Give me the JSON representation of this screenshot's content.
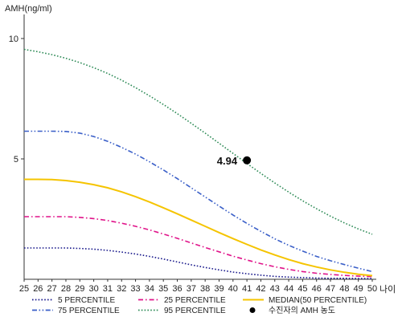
{
  "chart_data": {
    "type": "line",
    "ylabel": "AMH(ng/ml)",
    "xlabel": "나이",
    "x": [
      25,
      26,
      27,
      28,
      29,
      30,
      31,
      32,
      33,
      34,
      35,
      36,
      37,
      38,
      39,
      40,
      41,
      42,
      43,
      44,
      45,
      46,
      47,
      48,
      49,
      50
    ],
    "xlim": [
      25,
      50
    ],
    "ylim": [
      0,
      11
    ],
    "yticks": [
      5,
      10
    ],
    "series": [
      {
        "name": "5 PERCENTILE",
        "color": "#1a1a8c",
        "dash": "dotted",
        "values": [
          1.3,
          1.3,
          1.3,
          1.3,
          1.28,
          1.25,
          1.2,
          1.13,
          1.05,
          0.95,
          0.84,
          0.72,
          0.6,
          0.49,
          0.39,
          0.3,
          0.23,
          0.17,
          0.12,
          0.09,
          0.07,
          0.05,
          0.04,
          0.04,
          0.03,
          0.03
        ]
      },
      {
        "name": "25 PERCENTILE",
        "color": "#e0148a",
        "dash": "dashdot",
        "values": [
          2.6,
          2.6,
          2.6,
          2.6,
          2.57,
          2.52,
          2.44,
          2.33,
          2.2,
          2.05,
          1.88,
          1.7,
          1.51,
          1.32,
          1.14,
          0.96,
          0.8,
          0.65,
          0.52,
          0.41,
          0.32,
          0.25,
          0.2,
          0.16,
          0.13,
          0.11
        ]
      },
      {
        "name": "MEDIAN(50 PERCENTILE)",
        "color": "#f5c400",
        "dash": "solid",
        "values": [
          4.15,
          4.15,
          4.14,
          4.1,
          4.03,
          3.93,
          3.8,
          3.63,
          3.43,
          3.21,
          2.97,
          2.72,
          2.46,
          2.2,
          1.94,
          1.69,
          1.45,
          1.22,
          1.01,
          0.82,
          0.65,
          0.51,
          0.39,
          0.29,
          0.21,
          0.15
        ]
      },
      {
        "name": "75 PERCENTILE",
        "color": "#3a5fc8",
        "dash": "dashdotdot",
        "values": [
          6.15,
          6.15,
          6.15,
          6.14,
          6.07,
          5.93,
          5.73,
          5.48,
          5.2,
          4.88,
          4.54,
          4.18,
          3.8,
          3.42,
          3.04,
          2.67,
          2.32,
          1.99,
          1.68,
          1.41,
          1.17,
          0.95,
          0.77,
          0.61,
          0.46,
          0.32
        ]
      },
      {
        "name": "95 PERCENTILE",
        "color": "#2e8b57",
        "dash": "dotted",
        "values": [
          9.55,
          9.45,
          9.33,
          9.18,
          9.0,
          8.79,
          8.55,
          8.27,
          7.96,
          7.62,
          7.26,
          6.88,
          6.48,
          6.07,
          5.65,
          5.23,
          4.81,
          4.4,
          4.0,
          3.62,
          3.26,
          2.93,
          2.62,
          2.34,
          2.09,
          1.87
        ]
      }
    ],
    "marker": {
      "name": "수진자의 AMH 농도",
      "x": 41,
      "y": 4.94,
      "label": "4.94",
      "color": "#000000"
    },
    "legend": {
      "placement": "bottom",
      "items": [
        {
          "label": "5 PERCENTILE",
          "series": 0
        },
        {
          "label": "25 PERCENTILE",
          "series": 1
        },
        {
          "label": "MEDIAN(50 PERCENTILE)",
          "series": 2
        },
        {
          "label": "75 PERCENTILE",
          "series": 3
        },
        {
          "label": "95 PERCENTILE",
          "series": 4
        },
        {
          "label": "수진자의 AMH 농도",
          "marker": true
        }
      ]
    },
    "grid": false
  }
}
